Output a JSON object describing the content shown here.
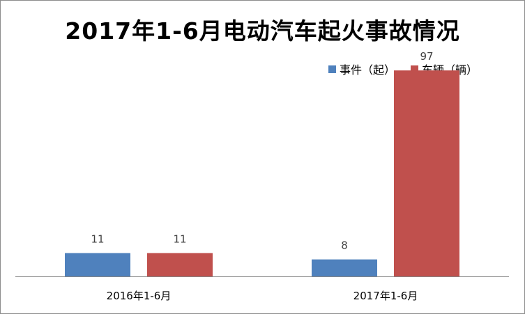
{
  "chart_data": {
    "type": "bar",
    "title": "2017年1-6月电动汽车起火事故情况",
    "categories": [
      "2016年1-6月",
      "2017年1-6月"
    ],
    "series": [
      {
        "name": "事件（起）",
        "values": [
          11,
          8
        ],
        "color": "#4f81bd"
      },
      {
        "name": "车辆（辆）",
        "values": [
          11,
          97
        ],
        "color": "#c0504d"
      }
    ],
    "ylim": [
      0,
      100
    ],
    "grid": false,
    "legend_position": "top-right",
    "data_labels": true
  }
}
